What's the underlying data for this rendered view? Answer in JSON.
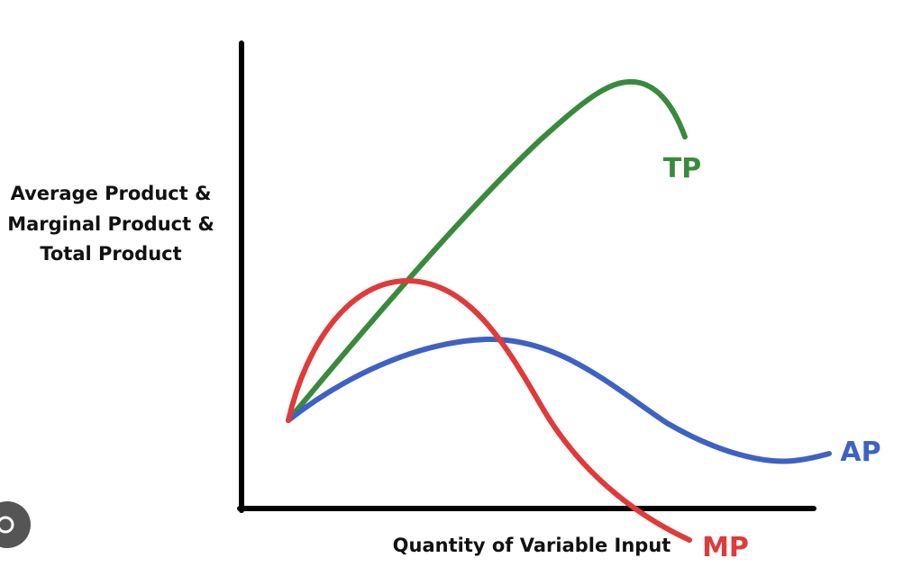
{
  "y_axis_label": [
    "Average Product &",
    "Marginal Product &",
    "Total Product"
  ],
  "x_axis_label": "Quantity of Variable Input",
  "curves": [
    {
      "label": "TP"
    },
    {
      "label": "MP"
    },
    {
      "label": "AP"
    }
  ]
}
